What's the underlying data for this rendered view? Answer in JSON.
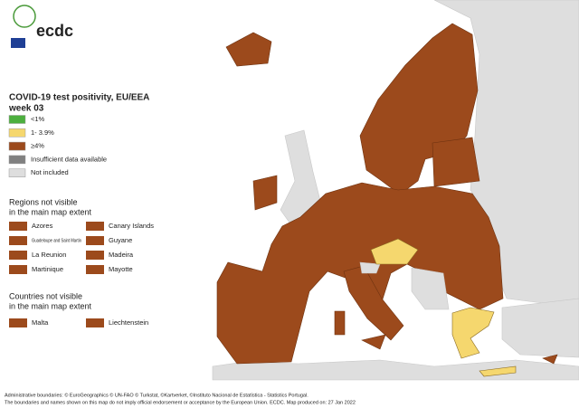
{
  "logo": {
    "text": "ecdc"
  },
  "title": {
    "line1": "COVID-19 test positivity, EU/EEA",
    "line2": "week 03"
  },
  "legend": [
    {
      "label": "<1%",
      "color": "#4caf3e"
    },
    {
      "label": "1- 3.9%",
      "color": "#f5d76e"
    },
    {
      "label": "≥4%",
      "color": "#9c4a1c"
    },
    {
      "label": "Insufficient data available",
      "color": "#808080"
    },
    {
      "label": "Not included",
      "color": "#dedede"
    }
  ],
  "regions": {
    "heading": [
      "Regions not visible",
      "in the main map extent"
    ],
    "items": [
      {
        "label": "Azores",
        "color": "#9c4a1c"
      },
      {
        "label": "Canary Islands",
        "color": "#9c4a1c"
      },
      {
        "label": "Guadeloupe and Saint Martin",
        "color": "#9c4a1c"
      },
      {
        "label": "Guyane",
        "color": "#9c4a1c"
      },
      {
        "label": "La Reunion",
        "color": "#9c4a1c"
      },
      {
        "label": "Madeira",
        "color": "#9c4a1c"
      },
      {
        "label": "Martinique",
        "color": "#9c4a1c"
      },
      {
        "label": "Mayotte",
        "color": "#9c4a1c"
      }
    ]
  },
  "countries": {
    "heading": [
      "Countries not visible",
      "in the main map extent"
    ],
    "items": [
      {
        "label": "Malta",
        "color": "#9c4a1c"
      },
      {
        "label": "Liechtenstein",
        "color": "#9c4a1c"
      }
    ]
  },
  "footer": [
    "Administrative boundaries: © EuroGeographics © UN-FAO © Turkstat, ©Kartverket, ©Instituto Nacional de Estatística - Statistics Portugal.",
    "The boundaries and names shown on this map do not imply official endorsement or acceptance by the European Union. ECDC. Map produced on: 27 Jan 2022"
  ]
}
